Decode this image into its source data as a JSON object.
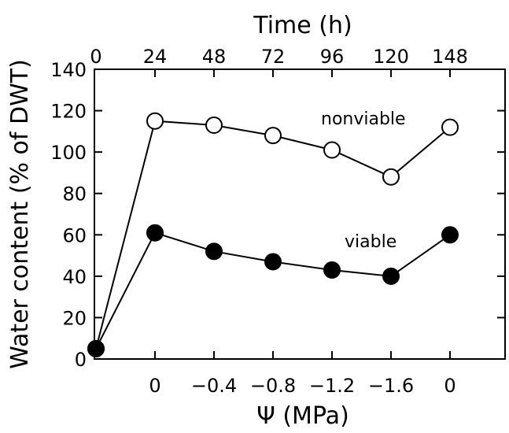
{
  "chart_data": {
    "type": "line",
    "title": "",
    "xlabel": "Ψ (MPa)",
    "x2label": "Time (h)",
    "ylabel": "Water content (% of DWT)",
    "ylim": [
      0,
      140
    ],
    "yticks": [
      "0",
      "20",
      "40",
      "60",
      "80",
      "100",
      "120",
      "140"
    ],
    "categories_time": [
      "0",
      "24",
      "48",
      "72",
      "96",
      "120",
      "148"
    ],
    "categories_psi": [
      "",
      "0",
      "−0.4",
      "−0.8",
      "−1.2",
      "−1.6",
      "0"
    ],
    "series": [
      {
        "name": "nonviable",
        "marker": "open-circle",
        "values": [
          5,
          115,
          113,
          108,
          101,
          88,
          112
        ]
      },
      {
        "name": "viable",
        "marker": "filled-circle",
        "values": [
          5,
          61,
          52,
          47,
          43,
          40,
          60
        ]
      }
    ],
    "grid": false,
    "legend": "inline-labels"
  }
}
